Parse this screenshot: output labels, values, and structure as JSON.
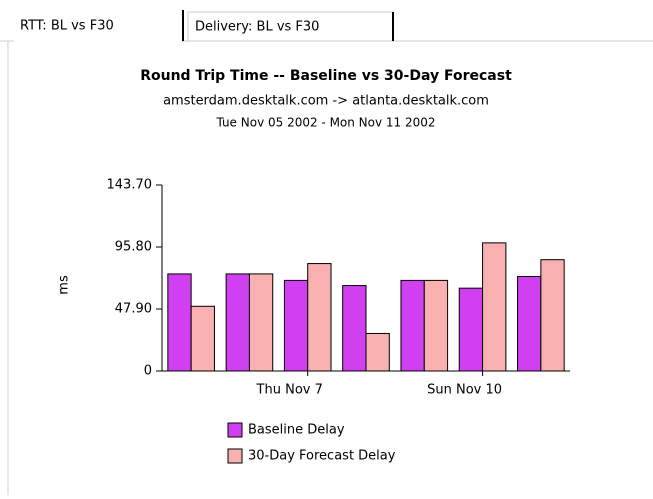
{
  "tabs": [
    "RTT: BL vs F30",
    "Delivery: BL vs F30"
  ],
  "chart_data": {
    "type": "bar",
    "title": "Round Trip Time -- Baseline vs 30-Day Forecast",
    "subtitle": "amsterdam.desktalk.com -> atlanta.desktalk.com",
    "date_range": "Tue Nov 05 2002 - Mon Nov 11 2002",
    "y_label": "ms",
    "categories": [
      null,
      null,
      "Thu Nov 7",
      null,
      null,
      "Sun Nov 10",
      null
    ],
    "series": [
      {
        "name": "Baseline Delay",
        "color": "#d040f0",
        "values": [
          75,
          75,
          70,
          66,
          70,
          64,
          73
        ]
      },
      {
        "name": "30-Day Forecast Delay",
        "color": "#f9b0b0",
        "values": [
          50,
          75,
          83,
          29,
          70,
          99,
          86
        ]
      }
    ],
    "ylim": [
      0,
      143.7
    ],
    "yticks": [
      0,
      {
        "value": 47.9,
        "label": "47.90"
      },
      {
        "value": 95.8,
        "label": "95.80"
      },
      {
        "value": 143.7,
        "label": "143.70"
      }
    ]
  }
}
